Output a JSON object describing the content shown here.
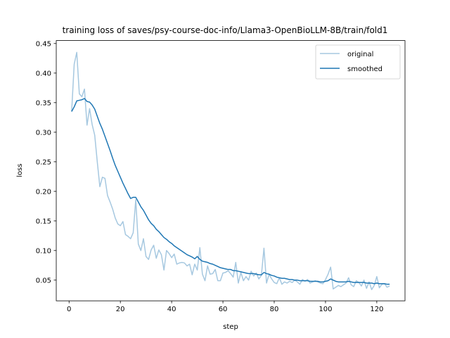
{
  "chart_data": {
    "type": "line",
    "title": "training loss of saves/psy-course-doc-info/Llama3-OpenBioLLM-8B/train/fold1",
    "xlabel": "step",
    "ylabel": "loss",
    "xlim": [
      -5,
      131
    ],
    "ylim": [
      0.015,
      0.455
    ],
    "x_ticks": [
      0,
      20,
      40,
      60,
      80,
      100,
      120
    ],
    "y_ticks": [
      0.05,
      0.1,
      0.15,
      0.2,
      0.25,
      0.3,
      0.35,
      0.4,
      0.45
    ],
    "legend_position": "top-right",
    "grid": false,
    "series": [
      {
        "name": "original",
        "color": "#a6c8e0",
        "x": [
          1,
          2,
          3,
          4,
          5,
          6,
          7,
          8,
          9,
          10,
          11,
          12,
          13,
          14,
          15,
          16,
          17,
          18,
          19,
          20,
          21,
          22,
          23,
          24,
          25,
          26,
          27,
          28,
          29,
          30,
          31,
          32,
          33,
          34,
          35,
          36,
          37,
          38,
          39,
          40,
          41,
          42,
          43,
          44,
          45,
          46,
          47,
          48,
          49,
          50,
          51,
          52,
          53,
          54,
          55,
          56,
          57,
          58,
          59,
          60,
          61,
          62,
          63,
          64,
          65,
          66,
          67,
          68,
          69,
          70,
          71,
          72,
          73,
          74,
          75,
          76,
          77,
          78,
          79,
          80,
          81,
          82,
          83,
          84,
          85,
          86,
          87,
          88,
          89,
          90,
          91,
          92,
          93,
          94,
          95,
          96,
          97,
          98,
          99,
          100,
          101,
          102,
          103,
          104,
          105,
          106,
          107,
          108,
          109,
          110,
          111,
          112,
          113,
          114,
          115,
          116,
          117,
          118,
          119,
          120,
          121,
          122,
          123,
          124,
          125
        ],
        "values": [
          0.335,
          0.415,
          0.435,
          0.365,
          0.36,
          0.373,
          0.312,
          0.34,
          0.313,
          0.295,
          0.25,
          0.208,
          0.224,
          0.222,
          0.193,
          0.182,
          0.17,
          0.155,
          0.145,
          0.142,
          0.149,
          0.127,
          0.124,
          0.12,
          0.13,
          0.186,
          0.111,
          0.1,
          0.12,
          0.09,
          0.085,
          0.101,
          0.109,
          0.087,
          0.101,
          0.093,
          0.067,
          0.1,
          0.095,
          0.088,
          0.094,
          0.077,
          0.079,
          0.08,
          0.079,
          0.074,
          0.077,
          0.059,
          0.077,
          0.067,
          0.105,
          0.06,
          0.049,
          0.074,
          0.06,
          0.061,
          0.068,
          0.049,
          0.049,
          0.062,
          0.063,
          0.066,
          0.061,
          0.055,
          0.08,
          0.045,
          0.063,
          0.049,
          0.056,
          0.05,
          0.065,
          0.057,
          0.062,
          0.052,
          0.058,
          0.104,
          0.045,
          0.06,
          0.052,
          0.046,
          0.044,
          0.054,
          0.043,
          0.047,
          0.045,
          0.048,
          0.046,
          0.05,
          0.047,
          0.043,
          0.051,
          0.048,
          0.051,
          0.045,
          0.047,
          0.049,
          0.047,
          0.045,
          0.044,
          0.051,
          0.06,
          0.072,
          0.035,
          0.038,
          0.041,
          0.039,
          0.042,
          0.045,
          0.054,
          0.042,
          0.039,
          0.049,
          0.046,
          0.04,
          0.05,
          0.036,
          0.047,
          0.034,
          0.041,
          0.056,
          0.037,
          0.043,
          0.044,
          0.038,
          0.04
        ]
      },
      {
        "name": "smoothed",
        "color": "#1f77b4",
        "x": [
          1,
          2,
          3,
          4,
          5,
          6,
          7,
          8,
          9,
          10,
          11,
          12,
          13,
          14,
          15,
          16,
          17,
          18,
          19,
          20,
          21,
          22,
          23,
          24,
          25,
          26,
          27,
          28,
          29,
          30,
          31,
          32,
          33,
          34,
          35,
          36,
          37,
          38,
          39,
          40,
          41,
          42,
          43,
          44,
          45,
          46,
          47,
          48,
          49,
          50,
          51,
          52,
          53,
          54,
          55,
          56,
          57,
          58,
          59,
          60,
          61,
          62,
          63,
          64,
          65,
          66,
          67,
          68,
          69,
          70,
          71,
          72,
          73,
          74,
          75,
          76,
          77,
          78,
          79,
          80,
          81,
          82,
          83,
          84,
          85,
          86,
          87,
          88,
          89,
          90,
          91,
          92,
          93,
          94,
          95,
          96,
          97,
          98,
          99,
          100,
          101,
          102,
          103,
          104,
          105,
          106,
          107,
          108,
          109,
          110,
          111,
          112,
          113,
          114,
          115,
          116,
          117,
          118,
          119,
          120,
          121,
          122,
          123,
          124,
          125
        ],
        "values": [
          0.335,
          0.343,
          0.353,
          0.354,
          0.355,
          0.357,
          0.352,
          0.351,
          0.346,
          0.339,
          0.327,
          0.315,
          0.305,
          0.293,
          0.281,
          0.269,
          0.256,
          0.244,
          0.234,
          0.224,
          0.214,
          0.205,
          0.196,
          0.188,
          0.19,
          0.19,
          0.182,
          0.174,
          0.168,
          0.16,
          0.152,
          0.146,
          0.142,
          0.136,
          0.132,
          0.127,
          0.122,
          0.119,
          0.115,
          0.112,
          0.108,
          0.105,
          0.102,
          0.099,
          0.096,
          0.093,
          0.091,
          0.089,
          0.086,
          0.09,
          0.085,
          0.082,
          0.081,
          0.08,
          0.078,
          0.077,
          0.075,
          0.073,
          0.071,
          0.07,
          0.069,
          0.068,
          0.068,
          0.066,
          0.066,
          0.065,
          0.064,
          0.063,
          0.062,
          0.061,
          0.061,
          0.061,
          0.06,
          0.059,
          0.059,
          0.063,
          0.061,
          0.06,
          0.058,
          0.057,
          0.055,
          0.054,
          0.053,
          0.053,
          0.052,
          0.051,
          0.051,
          0.05,
          0.05,
          0.049,
          0.049,
          0.049,
          0.049,
          0.048,
          0.048,
          0.048,
          0.048,
          0.047,
          0.047,
          0.048,
          0.049,
          0.052,
          0.05,
          0.048,
          0.047,
          0.047,
          0.047,
          0.047,
          0.048,
          0.047,
          0.046,
          0.046,
          0.046,
          0.046,
          0.046,
          0.045,
          0.045,
          0.045,
          0.044,
          0.045,
          0.044,
          0.044,
          0.044,
          0.043,
          0.043
        ]
      }
    ]
  }
}
